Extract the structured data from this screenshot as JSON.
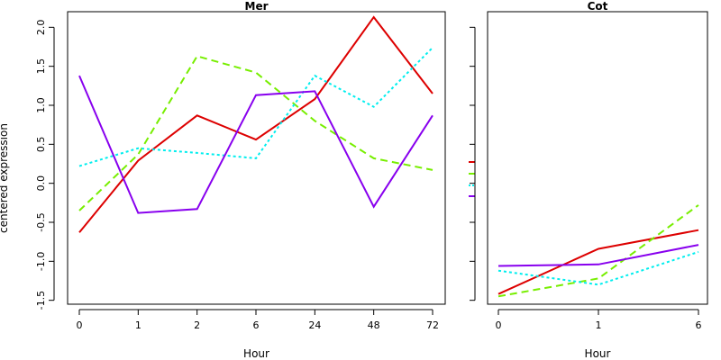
{
  "chart_data": [
    {
      "type": "line",
      "title": "Mer",
      "xlabel": "Hour",
      "ylabel": "centered expression",
      "categories": [
        "0",
        "1",
        "2",
        "6",
        "24",
        "48",
        "72"
      ],
      "ylim": [
        -1.55,
        2.2
      ],
      "yticks": [
        "-1.5",
        "-1.0",
        "-0.5",
        "0.0",
        "0.5",
        "1.0",
        "1.5",
        "2.0"
      ],
      "grid": false,
      "series": [
        {
          "color": "#dd0000",
          "dash": "solid",
          "values": [
            -0.63,
            0.29,
            0.87,
            0.56,
            1.08,
            2.13,
            1.15
          ]
        },
        {
          "color": "#77ee00",
          "dash": "dashed",
          "values": [
            -0.35,
            0.37,
            1.63,
            1.42,
            0.8,
            0.32,
            0.17
          ]
        },
        {
          "color": "#00eeee",
          "dash": "dotted",
          "values": [
            0.22,
            0.45,
            0.39,
            0.32,
            1.38,
            0.98,
            1.74
          ]
        },
        {
          "color": "#8800ee",
          "dash": "solid",
          "values": [
            1.38,
            -0.38,
            -0.33,
            1.13,
            1.18,
            -0.3,
            0.87
          ]
        }
      ]
    },
    {
      "type": "line",
      "title": "Cot",
      "xlabel": "Hour",
      "ylabel": "",
      "categories": [
        "0",
        "1",
        "6"
      ],
      "ylim": [
        -1.55,
        2.2
      ],
      "grid": false,
      "series": [
        {
          "color": "#dd0000",
          "dash": "solid",
          "values": [
            -1.42,
            -0.84,
            -0.6
          ]
        },
        {
          "color": "#77ee00",
          "dash": "dashed",
          "values": [
            -1.45,
            -1.22,
            -0.28
          ]
        },
        {
          "color": "#00eeee",
          "dash": "dotted",
          "values": [
            -1.12,
            -1.3,
            -0.88
          ]
        },
        {
          "color": "#8800ee",
          "dash": "solid",
          "values": [
            -1.06,
            -1.04,
            -0.79
          ]
        }
      ]
    }
  ]
}
